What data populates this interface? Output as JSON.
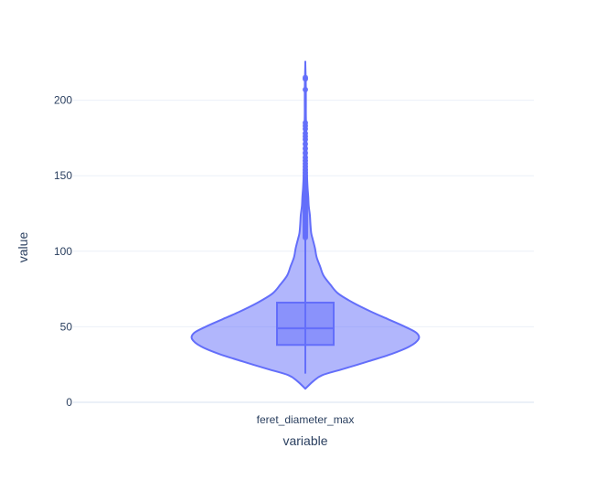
{
  "chart_data": {
    "type": "violin",
    "xlabel": "variable",
    "ylabel": "value",
    "categories": [
      "feret_diameter_max"
    ],
    "yticks": [
      0,
      50,
      100,
      150,
      200
    ],
    "ylim": [
      -3,
      230
    ],
    "grid": true,
    "colors": {
      "violin_fill": "#636efa",
      "violin_line": "#636efa",
      "grid": "#ebf0f8",
      "zeroline": "#ebf0f8",
      "text": "#2a3f5f"
    },
    "series": [
      {
        "category": "feret_diameter_max",
        "box": {
          "min": 19,
          "q1": 38,
          "median": 49,
          "q3": 66,
          "max": 108
        },
        "density_range": [
          9,
          224
        ],
        "density_profile": [
          [
            9,
            0.0
          ],
          [
            14,
            0.07
          ],
          [
            18,
            0.15
          ],
          [
            22,
            0.33
          ],
          [
            27,
            0.55
          ],
          [
            32,
            0.76
          ],
          [
            37,
            0.92
          ],
          [
            42,
            1.0
          ],
          [
            46,
            0.98
          ],
          [
            50,
            0.88
          ],
          [
            55,
            0.73
          ],
          [
            60,
            0.58
          ],
          [
            66,
            0.42
          ],
          [
            72,
            0.29
          ],
          [
            78,
            0.22
          ],
          [
            84,
            0.16
          ],
          [
            90,
            0.13
          ],
          [
            96,
            0.1
          ],
          [
            102,
            0.085
          ],
          [
            108,
            0.065
          ],
          [
            112,
            0.052
          ],
          [
            118,
            0.045
          ],
          [
            124,
            0.04
          ],
          [
            130,
            0.03
          ],
          [
            136,
            0.026
          ],
          [
            142,
            0.02
          ],
          [
            150,
            0.015
          ],
          [
            160,
            0.012
          ],
          [
            170,
            0.01
          ],
          [
            180,
            0.008
          ],
          [
            190,
            0.005
          ],
          [
            200,
            0.005
          ],
          [
            212,
            0.004
          ],
          [
            224,
            0.0
          ]
        ],
        "outliers": [
          109,
          110,
          111,
          112,
          113,
          114,
          115,
          116,
          117,
          118,
          119,
          120,
          121,
          122,
          123,
          124,
          125,
          126,
          127,
          128,
          129,
          130,
          131,
          132,
          133,
          134,
          135,
          136,
          137,
          138,
          139,
          140,
          141,
          142,
          143,
          144,
          145,
          146,
          147,
          148,
          150,
          152,
          154,
          156,
          158,
          160,
          162,
          165,
          168,
          171,
          174,
          176,
          178,
          181,
          183,
          185,
          207,
          214,
          215
        ]
      }
    ]
  }
}
